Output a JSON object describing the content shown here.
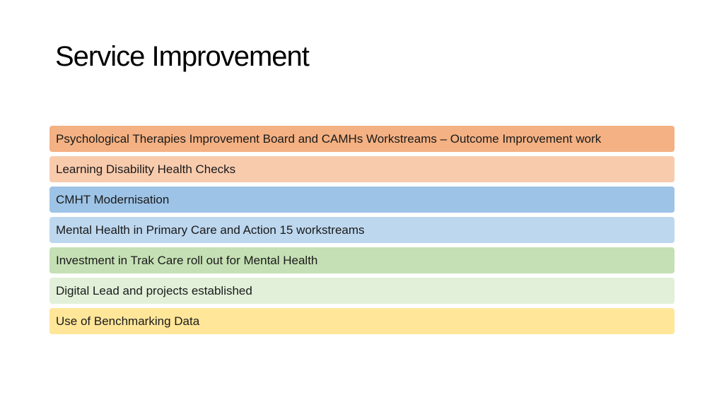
{
  "slide": {
    "title": "Service Improvement"
  },
  "items": [
    {
      "label": "Psychological Therapies Improvement Board and CAMHs Workstreams – Outcome Improvement work",
      "color": "#F4B183"
    },
    {
      "label": "Learning Disability Health Checks",
      "color": "#F8CBAD"
    },
    {
      "label": "CMHT Modernisation",
      "color": "#9DC3E6"
    },
    {
      "label": "Mental Health in Primary Care and Action 15 workstreams",
      "color": "#BDD7EE"
    },
    {
      "label": "Investment in Trak Care roll out for Mental Health",
      "color": "#C5E0B4"
    },
    {
      "label": "Digital Lead and projects established",
      "color": "#E2F0D9"
    },
    {
      "label": "Use of Benchmarking Data",
      "color": "#FFE699"
    }
  ]
}
